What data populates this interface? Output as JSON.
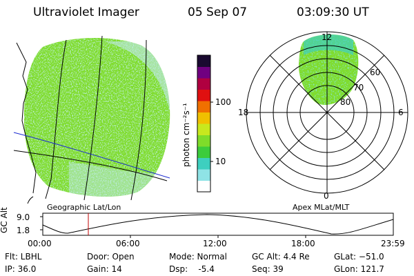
{
  "header": {
    "instrument": "Ultraviolet Imager",
    "date": "05 Sep 07",
    "time": "03:09:30 UT"
  },
  "geo_panel": {
    "label": "Geographic Lat/Lon"
  },
  "polar_panel": {
    "label": "Apex MLat/MLT",
    "mlt_labels": [
      "12",
      "18",
      "6",
      "0"
    ],
    "mlat_labels": [
      "60",
      "70",
      "80"
    ]
  },
  "colorbar": {
    "unit": "photon cm⁻²s⁻¹",
    "tick_labels": [
      "100",
      "10"
    ],
    "scale": "log",
    "colors": [
      "#ffffff",
      "#8fe3e6",
      "#3ecfbf",
      "#3ccc3c",
      "#7fdc2a",
      "#c8e81e",
      "#f0c000",
      "#f07000",
      "#e01010",
      "#b00040",
      "#700080",
      "#1a0a30"
    ]
  },
  "altitude_plot": {
    "ylabel": "GC Alt",
    "y_ticks": [
      "9.0",
      "1.8"
    ],
    "x_ticks": [
      "00:00",
      "06:00",
      "12:00",
      "18:00",
      "23:59"
    ],
    "current_time_marker": "03:09:30",
    "marker_color": "#c00000"
  },
  "status": {
    "flt": "Flt: LBHL",
    "ip": "IP: 36.0",
    "door": "Door: Open",
    "gain": "Gain: 14",
    "mode": "Mode: Normal",
    "dsp": "Dsp:    -5.4",
    "gc_alt": "GC Alt: 4.4 Re",
    "seq": "Seq: 39",
    "glat": "GLat: −51.0",
    "glon": "GLon: 121.7"
  }
}
